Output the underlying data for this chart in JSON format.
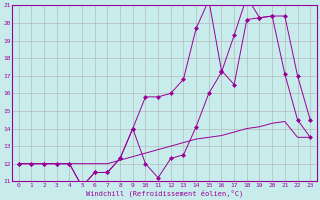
{
  "xlabel": "Windchill (Refroidissement éolien,°C)",
  "bg_color": "#c8ecec",
  "line_color": "#990099",
  "grid_color": "#b0b0b0",
  "xlim": [
    -0.5,
    23.5
  ],
  "ylim": [
    11,
    21
  ],
  "yticks": [
    11,
    12,
    13,
    14,
    15,
    16,
    17,
    18,
    19,
    20,
    21
  ],
  "xticks": [
    0,
    1,
    2,
    3,
    4,
    5,
    6,
    7,
    8,
    9,
    10,
    11,
    12,
    13,
    14,
    15,
    16,
    17,
    18,
    19,
    20,
    21,
    22,
    23
  ],
  "line1_x": [
    0,
    1,
    2,
    3,
    4,
    5,
    6,
    7,
    8,
    9,
    10,
    11,
    12,
    13,
    14,
    15,
    16,
    17,
    18,
    19,
    20,
    21,
    22,
    23
  ],
  "line1_y": [
    12,
    12,
    12,
    12,
    12,
    10.7,
    11.5,
    11.5,
    12.3,
    14.0,
    15.8,
    15.8,
    16.0,
    16.8,
    19.7,
    21.3,
    17.3,
    16.5,
    20.2,
    20.3,
    20.4,
    17.1,
    14.5,
    13.5
  ],
  "line2_x": [
    0,
    1,
    2,
    3,
    4,
    5,
    6,
    7,
    8,
    9,
    10,
    11,
    12,
    13,
    14,
    15,
    16,
    17,
    18,
    19,
    20,
    21,
    22,
    23
  ],
  "line2_y": [
    12,
    12,
    12,
    12,
    12,
    10.7,
    11.5,
    11.5,
    12.3,
    14.0,
    12.0,
    11.2,
    12.3,
    12.5,
    14.1,
    16.0,
    17.2,
    19.3,
    21.5,
    20.3,
    20.4,
    20.4,
    17.0,
    14.5
  ],
  "line3_x": [
    0,
    1,
    2,
    3,
    4,
    5,
    6,
    7,
    8,
    9,
    10,
    11,
    12,
    13,
    14,
    15,
    16,
    17,
    18,
    19,
    20,
    21,
    22,
    23
  ],
  "line3_y": [
    12,
    12,
    12,
    12,
    12,
    12,
    12,
    12,
    12.2,
    12.4,
    12.6,
    12.8,
    13.0,
    13.2,
    13.4,
    13.5,
    13.6,
    13.8,
    14.0,
    14.1,
    14.3,
    14.4,
    13.5,
    13.5
  ]
}
